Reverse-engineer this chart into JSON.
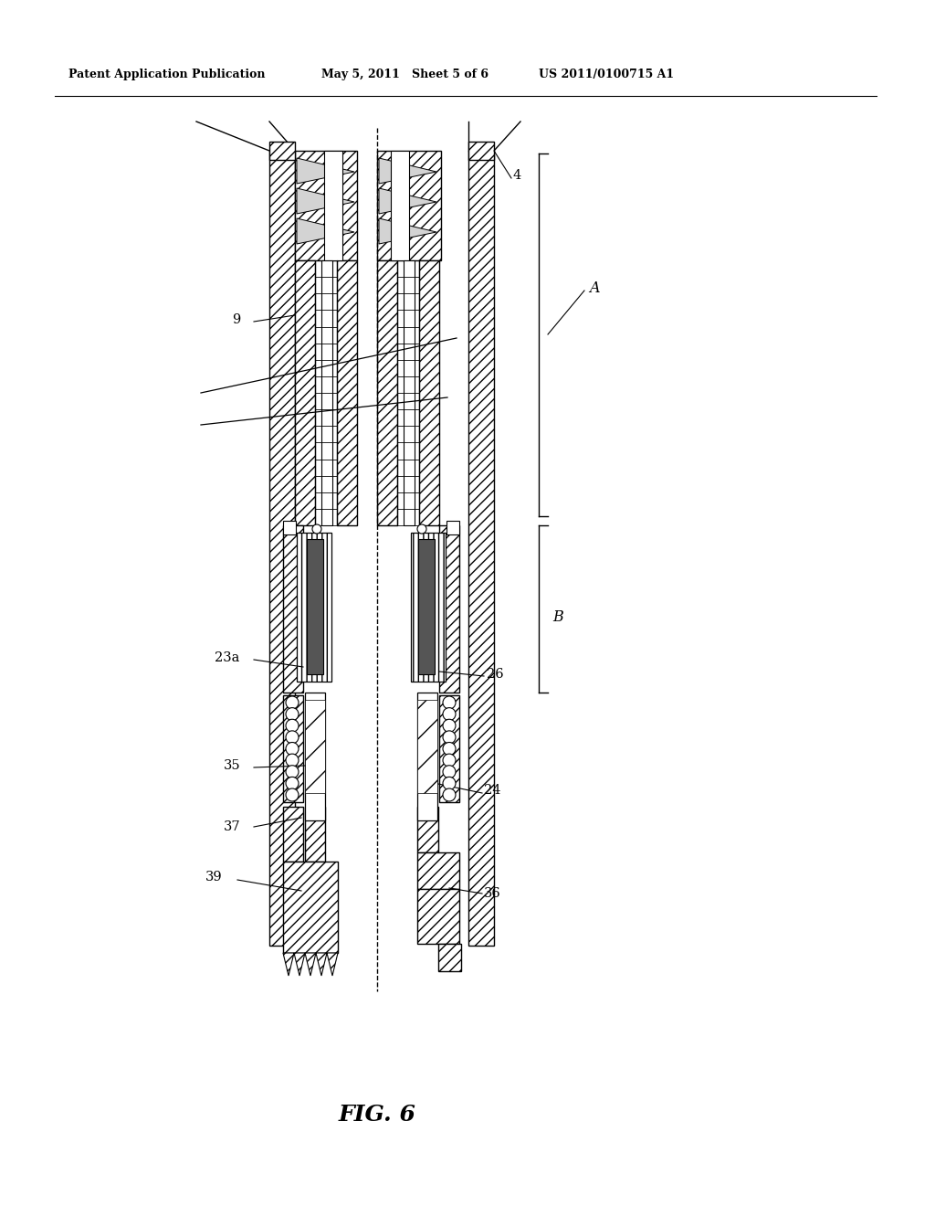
{
  "title_left": "Patent Application Publication",
  "title_mid": "May 5, 2011   Sheet 5 of 6",
  "title_right": "US 2011/0100715 A1",
  "fig_label": "FIG. 6",
  "bg_color": "#ffffff",
  "line_color": "#000000"
}
